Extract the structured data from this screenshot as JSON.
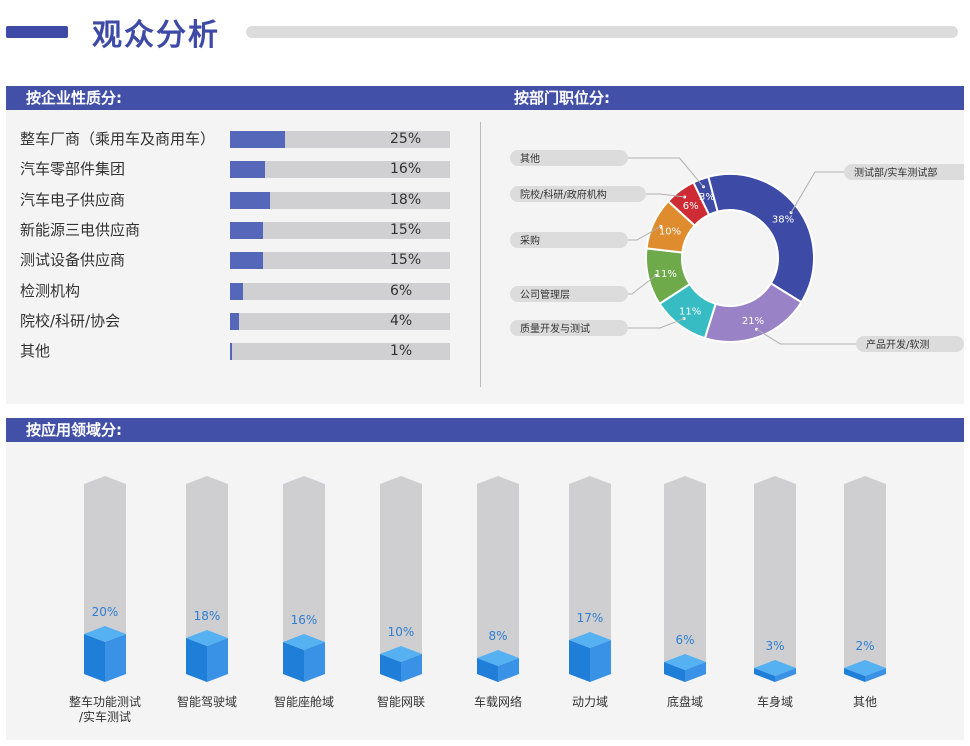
{
  "header": {
    "title": "观众分析"
  },
  "sections": {
    "company": "按企业性质分:",
    "dept": "按部门职位分:",
    "domain": "按应用领域分:"
  },
  "chart_data": [
    {
      "type": "bar",
      "orientation": "horizontal",
      "categories": [
        "整车厂商（乘用车及商用车）",
        "汽车零部件集团",
        "汽车电子供应商",
        "新能源三电供应商",
        "测试设备供应商",
        "检测机构",
        "院校/科研/协会",
        "其他"
      ],
      "values": [
        25,
        16,
        18,
        15,
        15,
        6,
        4,
        1
      ],
      "value_labels": [
        "25%",
        "16%",
        "18%",
        "15%",
        "15%",
        "6%",
        "4%",
        "1%"
      ],
      "xlim": [
        0,
        100
      ],
      "color": "#5567b8"
    },
    {
      "type": "pie",
      "style": "donut",
      "slices": [
        {
          "label": "测试部/实车测试部",
          "value": 38,
          "value_label": "38%",
          "color": "#3d4aa6"
        },
        {
          "label": "产品开发/软测",
          "value": 21,
          "value_label": "21%",
          "color": "#9a82c6"
        },
        {
          "label": "质量开发与测试",
          "value": 11,
          "value_label": "11%",
          "color": "#37bcc4"
        },
        {
          "label": "公司管理层",
          "value": 11,
          "value_label": "11%",
          "color": "#6ea94a"
        },
        {
          "label": "采购",
          "value": 10,
          "value_label": "10%",
          "color": "#de8c2d"
        },
        {
          "label": "院校/科研/政府机构",
          "value": 6,
          "value_label": "6%",
          "color": "#cf2b34"
        },
        {
          "label": "其他",
          "value": 3,
          "value_label": "3%",
          "color": "#3d4aa6"
        }
      ]
    },
    {
      "type": "bar",
      "categories": [
        "整车功能测试/实车测试",
        "智能驾驶域",
        "智能座舱域",
        "智能网联",
        "车载网络",
        "动力域",
        "底盘域",
        "车身域",
        "其他"
      ],
      "category_lines": [
        [
          "整车功能测试",
          "/实车测试"
        ],
        [
          "智能驾驶域"
        ],
        [
          "智能座舱域"
        ],
        [
          "智能网联"
        ],
        [
          "车载网络"
        ],
        [
          "动力域"
        ],
        [
          "底盘域"
        ],
        [
          "车身域"
        ],
        [
          "其他"
        ]
      ],
      "values": [
        20,
        18,
        16,
        10,
        8,
        17,
        6,
        3,
        2
      ],
      "value_labels": [
        "20%",
        "18%",
        "16%",
        "10%",
        "8%",
        "17%",
        "6%",
        "3%",
        "2%"
      ],
      "ylim": [
        0,
        100
      ],
      "color": "#2f8fdf"
    }
  ]
}
